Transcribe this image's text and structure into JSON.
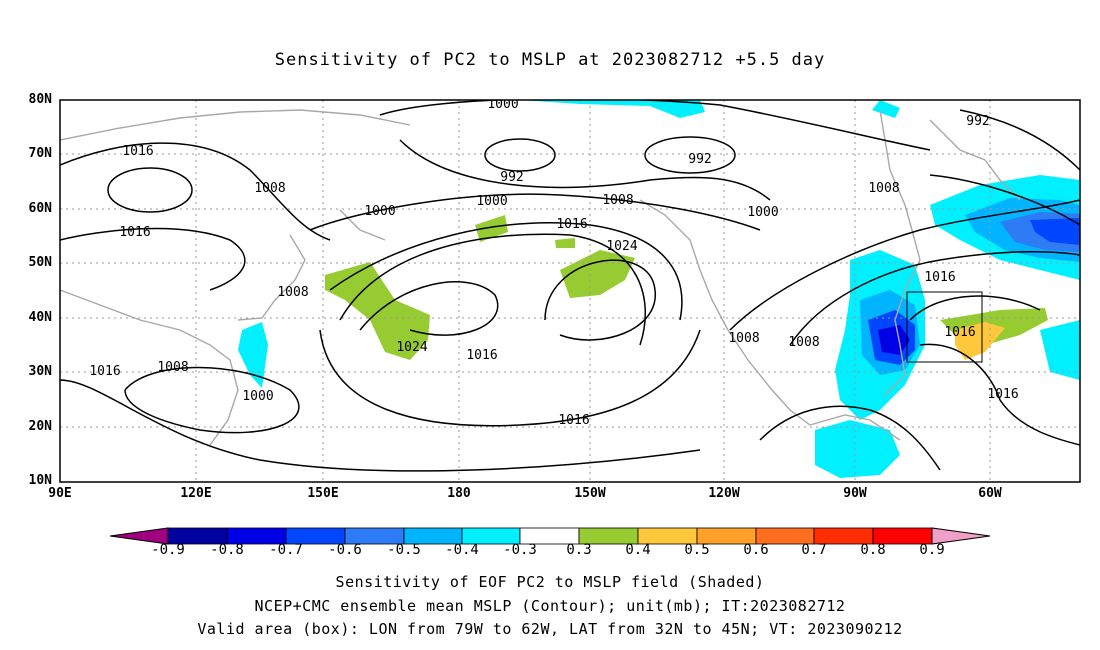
{
  "title": "Sensitivity of PC2 to MSLP at 2023082712 +5.5 day",
  "lat_labels": [
    "80N",
    "70N",
    "60N",
    "50N",
    "40N",
    "30N",
    "20N",
    "10N"
  ],
  "lon_labels": [
    "90E",
    "120E",
    "150E",
    "180",
    "150W",
    "120W",
    "90W",
    "60W"
  ],
  "isobar_labels": [
    "1000",
    "1016",
    "1008",
    "1016",
    "992",
    "992",
    "1000",
    "1000",
    "1008",
    "1016",
    "1024",
    "1008",
    "1024",
    "1016",
    "1016",
    "1008",
    "1008",
    "1008",
    "992",
    "1016",
    "1016",
    "1016",
    "1000",
    "1008",
    "1016"
  ],
  "colorbar": {
    "labels": [
      "-0.9",
      "-0.8",
      "-0.7",
      "-0.6",
      "-0.5",
      "-0.4",
      "-0.3",
      "0.3",
      "0.4",
      "0.5",
      "0.6",
      "0.7",
      "0.8",
      "0.9"
    ],
    "colors": [
      "#a0007f",
      "#00009e",
      "#0000e6",
      "#0046ff",
      "#2d7cf5",
      "#00b4ff",
      "#00f0ff",
      "#ffffff",
      "#96cc32",
      "#ffc83c",
      "#ffa028",
      "#ff6e1e",
      "#ff2d00",
      "#f0a0c8"
    ]
  },
  "captions": {
    "line1": "Sensitivity of EOF PC2 to MSLP field (Shaded)",
    "line2": "NCEP+CMC ensemble mean MSLP (Contour); unit(mb); IT:2023082712",
    "line3": "Valid area (box): LON from 79W to 62W, LAT from 32N to 45N; VT: 2023090212"
  }
}
